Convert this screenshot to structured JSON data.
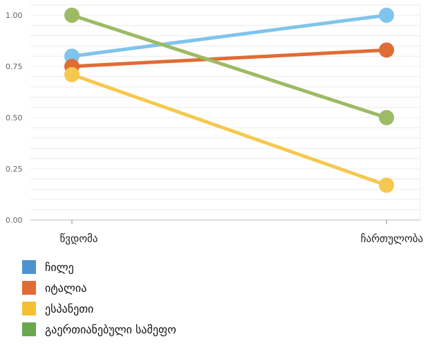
{
  "chart_data": {
    "type": "line",
    "categories": [
      "წვდომა",
      "ჩართულობა"
    ],
    "yticks": [
      "0.00",
      "0.25",
      "0.50",
      "0.75",
      "1.00"
    ],
    "ylim": [
      0,
      1.05
    ],
    "grid": true,
    "legend_position": "bottom-left",
    "series": [
      {
        "name": "ჩილე",
        "values": [
          0.8,
          1.0
        ],
        "color": "#7fc4ec",
        "swatch": "#4d94cf"
      },
      {
        "name": "იტალია",
        "values": [
          0.75,
          0.83
        ],
        "color": "#e06c35",
        "swatch": "#e06c35"
      },
      {
        "name": "ესპანეთი",
        "values": [
          0.71,
          0.17
        ],
        "color": "#f5c84e",
        "swatch": "#f5c02f"
      },
      {
        "name": "გაერთიანებული სამეფო",
        "values": [
          1.0,
          0.5
        ],
        "color": "#9cbb64",
        "swatch": "#6aa84f"
      }
    ]
  }
}
